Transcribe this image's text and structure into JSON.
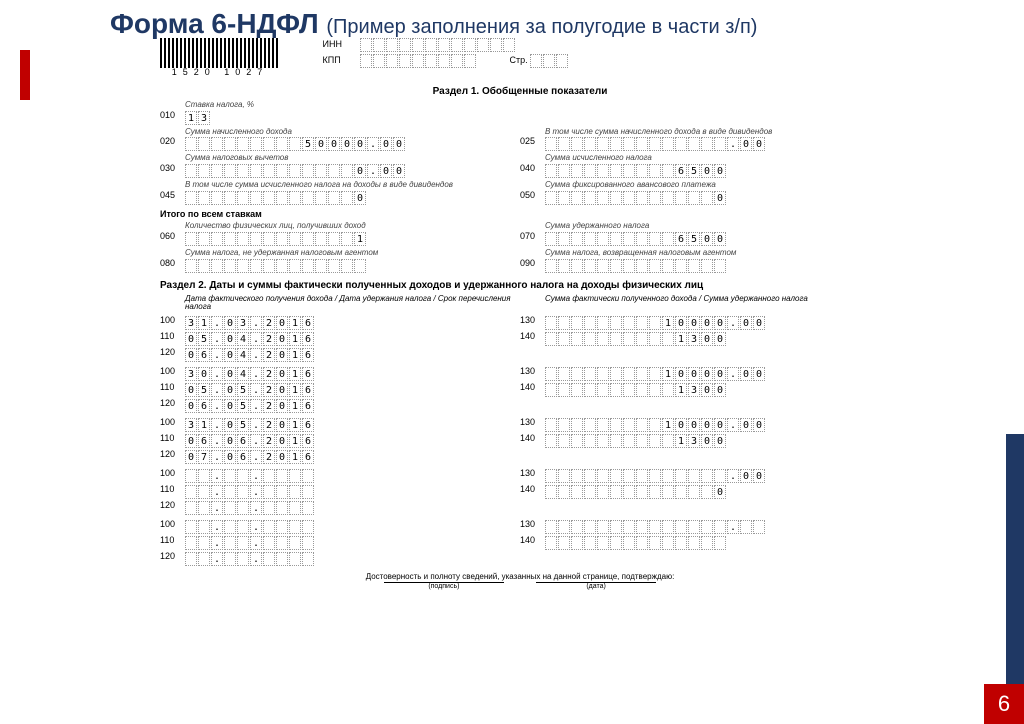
{
  "slide": {
    "title_main": "Форма 6-НДФЛ",
    "title_sub": "(Пример заполнения за полугодие в части з/п)",
    "page_number": "6"
  },
  "barcode": {
    "number": "1520 1027"
  },
  "header": {
    "inn_label": "ИНН",
    "kpp_label": "КПП",
    "page_label": "Стр.",
    "inn": [
      "",
      "",
      "",
      "",
      "",
      "",
      "",
      "",
      "",
      "",
      "",
      ""
    ],
    "kpp": [
      "",
      "",
      "",
      "",
      "",
      "",
      "",
      "",
      ""
    ],
    "page": [
      "",
      "",
      ""
    ]
  },
  "section1": {
    "title": "Раздел 1. Обобщенные показатели",
    "rate_label": "Ставка налога, %",
    "f010": [
      "1",
      "3"
    ],
    "lbl020": "Сумма начисленного дохода",
    "f020": [
      "",
      "",
      "",
      "",
      "",
      "",
      "",
      "",
      "",
      "5",
      "0",
      "0",
      "0",
      "0",
      ".",
      "0",
      "0"
    ],
    "lbl025": "В том числе сумма начисленного дохода в виде дивидендов",
    "f025": [
      "",
      "",
      "",
      "",
      "",
      "",
      "",
      "",
      "",
      "",
      "",
      "",
      "",
      "",
      ".",
      "0",
      "0"
    ],
    "lbl030": "Сумма налоговых вычетов",
    "f030": [
      "",
      "",
      "",
      "",
      "",
      "",
      "",
      "",
      "",
      "",
      "",
      "",
      "",
      "0",
      ".",
      "0",
      "0"
    ],
    "lbl040": "Сумма исчисленного налога",
    "f040": [
      "",
      "",
      "",
      "",
      "",
      "",
      "",
      "",
      "",
      "",
      "6",
      "5",
      "0",
      "0"
    ],
    "lbl045": "В том числе сумма исчисленного налога на доходы в виде дивидендов",
    "f045": [
      "",
      "",
      "",
      "",
      "",
      "",
      "",
      "",
      "",
      "",
      "",
      "",
      "",
      "0"
    ],
    "lbl050": "Сумма фиксированного авансового платежа",
    "f050": [
      "",
      "",
      "",
      "",
      "",
      "",
      "",
      "",
      "",
      "",
      "",
      "",
      "",
      "0"
    ],
    "total_label": "Итого по всем ставкам",
    "lbl060": "Количество физических лиц, получивших доход",
    "f060": [
      "",
      "",
      "",
      "",
      "",
      "",
      "",
      "",
      "",
      "",
      "",
      "",
      "",
      "1"
    ],
    "lbl070": "Сумма удержанного налога",
    "f070": [
      "",
      "",
      "",
      "",
      "",
      "",
      "",
      "",
      "",
      "",
      "6",
      "5",
      "0",
      "0"
    ],
    "lbl080": "Сумма налога, не удержанная налоговым агентом",
    "f080": [
      "",
      "",
      "",
      "",
      "",
      "",
      "",
      "",
      "",
      "",
      "",
      "",
      "",
      ""
    ],
    "lbl090": "Сумма налога, возвращенная налоговым агентом",
    "f090": [
      "",
      "",
      "",
      "",
      "",
      "",
      "",
      "",
      "",
      "",
      "",
      "",
      "",
      ""
    ]
  },
  "section2": {
    "title": "Раздел 2. Даты и суммы фактически полученных доходов и удержанного налога на доходы физических лиц",
    "left_header": "Дата фактического получения дохода / Дата удержания налога / Срок перечисления налога",
    "right_header": "Сумма фактически полученного дохода / Сумма удержанного налога",
    "blocks": [
      {
        "d100": [
          "3",
          "1",
          ".",
          "0",
          "3",
          ".",
          "2",
          "0",
          "1",
          "6"
        ],
        "d110": [
          "0",
          "5",
          ".",
          "0",
          "4",
          ".",
          "2",
          "0",
          "1",
          "6"
        ],
        "d120": [
          "0",
          "6",
          ".",
          "0",
          "4",
          ".",
          "2",
          "0",
          "1",
          "6"
        ],
        "s130": [
          "",
          "",
          "",
          "",
          "",
          "",
          "",
          "",
          "",
          "1",
          "0",
          "0",
          "0",
          "0",
          ".",
          "0",
          "0"
        ],
        "s140": [
          "",
          "",
          "",
          "",
          "",
          "",
          "",
          "",
          "",
          "",
          "1",
          "3",
          "0",
          "0"
        ]
      },
      {
        "d100": [
          "3",
          "0",
          ".",
          "0",
          "4",
          ".",
          "2",
          "0",
          "1",
          "6"
        ],
        "d110": [
          "0",
          "5",
          ".",
          "0",
          "5",
          ".",
          "2",
          "0",
          "1",
          "6"
        ],
        "d120": [
          "0",
          "6",
          ".",
          "0",
          "5",
          ".",
          "2",
          "0",
          "1",
          "6"
        ],
        "s130": [
          "",
          "",
          "",
          "",
          "",
          "",
          "",
          "",
          "",
          "1",
          "0",
          "0",
          "0",
          "0",
          ".",
          "0",
          "0"
        ],
        "s140": [
          "",
          "",
          "",
          "",
          "",
          "",
          "",
          "",
          "",
          "",
          "1",
          "3",
          "0",
          "0"
        ]
      },
      {
        "d100": [
          "3",
          "1",
          ".",
          "0",
          "5",
          ".",
          "2",
          "0",
          "1",
          "6"
        ],
        "d110": [
          "0",
          "6",
          ".",
          "0",
          "6",
          ".",
          "2",
          "0",
          "1",
          "6"
        ],
        "d120": [
          "0",
          "7",
          ".",
          "0",
          "6",
          ".",
          "2",
          "0",
          "1",
          "6"
        ],
        "s130": [
          "",
          "",
          "",
          "",
          "",
          "",
          "",
          "",
          "",
          "1",
          "0",
          "0",
          "0",
          "0",
          ".",
          "0",
          "0"
        ],
        "s140": [
          "",
          "",
          "",
          "",
          "",
          "",
          "",
          "",
          "",
          "",
          "1",
          "3",
          "0",
          "0"
        ]
      },
      {
        "d100": [
          "",
          "",
          ".",
          "",
          "",
          ".",
          "",
          "",
          "",
          ""
        ],
        "d110": [
          "",
          "",
          ".",
          "",
          "",
          ".",
          "",
          "",
          "",
          ""
        ],
        "d120": [
          "",
          "",
          ".",
          "",
          "",
          ".",
          "",
          "",
          "",
          ""
        ],
        "s130": [
          "",
          "",
          "",
          "",
          "",
          "",
          "",
          "",
          "",
          "",
          "",
          "",
          "",
          "",
          ".",
          "0",
          "0"
        ],
        "s140": [
          "",
          "",
          "",
          "",
          "",
          "",
          "",
          "",
          "",
          "",
          "",
          "",
          "",
          "0"
        ]
      },
      {
        "d100": [
          "",
          "",
          ".",
          "",
          "",
          ".",
          "",
          "",
          "",
          ""
        ],
        "d110": [
          "",
          "",
          ".",
          "",
          "",
          ".",
          "",
          "",
          "",
          ""
        ],
        "d120": [
          "",
          "",
          ".",
          "",
          "",
          ".",
          "",
          "",
          "",
          ""
        ],
        "s130": [
          "",
          "",
          "",
          "",
          "",
          "",
          "",
          "",
          "",
          "",
          "",
          "",
          "",
          "",
          ".",
          "",
          ""
        ],
        "s140": [
          "",
          "",
          "",
          "",
          "",
          "",
          "",
          "",
          "",
          "",
          "",
          "",
          "",
          ""
        ]
      }
    ]
  },
  "footer": {
    "confirm": "Достоверность и полноту сведений, указанных на данной странице, подтверждаю:",
    "sig": "(подпись)",
    "date": "(дата)"
  },
  "codes": {
    "c010": "010",
    "c020": "020",
    "c025": "025",
    "c030": "030",
    "c040": "040",
    "c045": "045",
    "c050": "050",
    "c060": "060",
    "c070": "070",
    "c080": "080",
    "c090": "090",
    "c100": "100",
    "c110": "110",
    "c120": "120",
    "c130": "130",
    "c140": "140"
  },
  "colors": {
    "title": "#1f3864",
    "accent_red": "#c00000",
    "accent_blue": "#1f3864",
    "cell_border": "#999999",
    "text": "#000000",
    "background": "#ffffff"
  }
}
